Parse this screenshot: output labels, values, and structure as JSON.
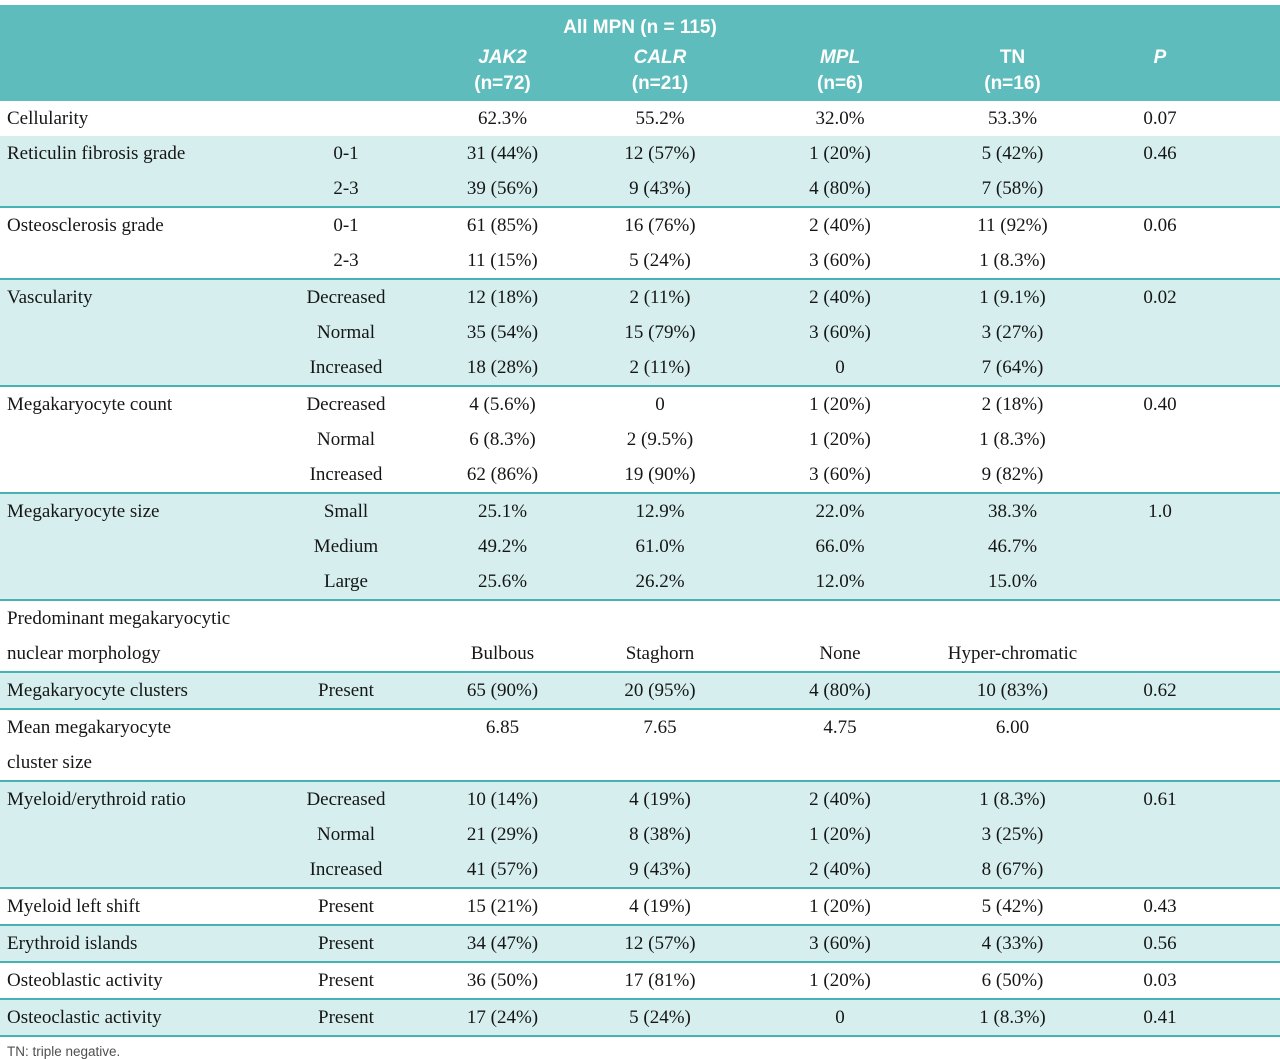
{
  "header": {
    "group_title": "All MPN (n = 115)",
    "columns": [
      {
        "name": "JAK2",
        "n": "(n=72)",
        "italic": true
      },
      {
        "name": "CALR",
        "n": "(n=21)",
        "italic": true
      },
      {
        "name": "MPL",
        "n": "(n=6)",
        "italic": true
      },
      {
        "name": "TN",
        "n": "(n=16)",
        "italic": false
      },
      {
        "name": "P",
        "n": "",
        "italic": true
      }
    ]
  },
  "table": {
    "rows": [
      {
        "label": "Cellularity",
        "sub": "",
        "jak2": "62.3%",
        "calr": "55.2%",
        "mpl": "32.0%",
        "tn": "53.3%",
        "p": "0.07",
        "shaded": false,
        "line": false
      },
      {
        "label": "Reticulin fibrosis grade",
        "sub": "0-1",
        "jak2": "31 (44%)",
        "calr": "12 (57%)",
        "mpl": "1 (20%)",
        "tn": "5 (42%)",
        "p": "0.46",
        "shaded": true,
        "line": false
      },
      {
        "label": "",
        "sub": "2-3",
        "jak2": "39 (56%)",
        "calr": "9 (43%)",
        "mpl": "4 (80%)",
        "tn": "7 (58%)",
        "p": "",
        "shaded": true,
        "line": false
      },
      {
        "label": "Osteosclerosis grade",
        "sub": "0-1",
        "jak2": "61 (85%)",
        "calr": "16 (76%)",
        "mpl": "2 (40%)",
        "tn": "11 (92%)",
        "p": "0.06",
        "shaded": false,
        "line": true
      },
      {
        "label": "",
        "sub": "2-3",
        "jak2": "11 (15%)",
        "calr": "5 (24%)",
        "mpl": "3 (60%)",
        "tn": "1 (8.3%)",
        "p": "",
        "shaded": false,
        "line": false
      },
      {
        "label": "Vascularity",
        "sub": "Decreased",
        "jak2": "12 (18%)",
        "calr": "2 (11%)",
        "mpl": "2 (40%)",
        "tn": "1 (9.1%)",
        "p": "0.02",
        "shaded": true,
        "line": true
      },
      {
        "label": "",
        "sub": "Normal",
        "jak2": "35 (54%)",
        "calr": "15 (79%)",
        "mpl": "3 (60%)",
        "tn": "3 (27%)",
        "p": "",
        "shaded": true,
        "line": false
      },
      {
        "label": "",
        "sub": "Increased",
        "jak2": "18 (28%)",
        "calr": "2 (11%)",
        "mpl": "0",
        "tn": "7 (64%)",
        "p": "",
        "shaded": true,
        "line": false
      },
      {
        "label": "Megakaryocyte count",
        "sub": "Decreased",
        "jak2": "4 (5.6%)",
        "calr": "0",
        "mpl": "1 (20%)",
        "tn": "2 (18%)",
        "p": "0.40",
        "shaded": false,
        "line": true
      },
      {
        "label": "",
        "sub": "Normal",
        "jak2": "6 (8.3%)",
        "calr": "2 (9.5%)",
        "mpl": "1 (20%)",
        "tn": "1 (8.3%)",
        "p": "",
        "shaded": false,
        "line": false
      },
      {
        "label": "",
        "sub": "Increased",
        "jak2": "62 (86%)",
        "calr": "19 (90%)",
        "mpl": "3 (60%)",
        "tn": "9 (82%)",
        "p": "",
        "shaded": false,
        "line": false
      },
      {
        "label": "Megakaryocyte size",
        "sub": "Small",
        "jak2": "25.1%",
        "calr": "12.9%",
        "mpl": "22.0%",
        "tn": "38.3%",
        "p": "1.0",
        "shaded": true,
        "line": true
      },
      {
        "label": "",
        "sub": "Medium",
        "jak2": "49.2%",
        "calr": "61.0%",
        "mpl": "66.0%",
        "tn": "46.7%",
        "p": "",
        "shaded": true,
        "line": false
      },
      {
        "label": "",
        "sub": "Large",
        "jak2": "25.6%",
        "calr": "26.2%",
        "mpl": "12.0%",
        "tn": "15.0%",
        "p": "",
        "shaded": true,
        "line": false
      },
      {
        "label": "Predominant megakaryocytic",
        "sub": "",
        "jak2": "",
        "calr": "",
        "mpl": "",
        "tn": "",
        "p": "",
        "shaded": false,
        "line": true
      },
      {
        "label": "nuclear morphology",
        "sub": "",
        "jak2": "Bulbous",
        "calr": "Staghorn",
        "mpl": "None",
        "tn": "Hyper-chromatic",
        "p": "",
        "shaded": false,
        "line": false
      },
      {
        "label": "Megakaryocyte clusters",
        "sub": "Present",
        "jak2": "65 (90%)",
        "calr": "20 (95%)",
        "mpl": "4 (80%)",
        "tn": "10 (83%)",
        "p": "0.62",
        "shaded": true,
        "line": true
      },
      {
        "label": "Mean megakaryocyte",
        "sub": "",
        "jak2": "6.85",
        "calr": "7.65",
        "mpl": "4.75",
        "tn": "6.00",
        "p": "",
        "shaded": false,
        "line": true
      },
      {
        "label": "cluster size",
        "sub": "",
        "jak2": "",
        "calr": "",
        "mpl": "",
        "tn": "",
        "p": "",
        "shaded": false,
        "line": false
      },
      {
        "label": "Myeloid/erythroid ratio",
        "sub": "Decreased",
        "jak2": "10 (14%)",
        "calr": "4 (19%)",
        "mpl": "2 (40%)",
        "tn": "1 (8.3%)",
        "p": "0.61",
        "shaded": true,
        "line": true
      },
      {
        "label": "",
        "sub": "Normal",
        "jak2": "21 (29%)",
        "calr": "8 (38%)",
        "mpl": "1 (20%)",
        "tn": "3 (25%)",
        "p": "",
        "shaded": true,
        "line": false
      },
      {
        "label": "",
        "sub": "Increased",
        "jak2": "41 (57%)",
        "calr": "9 (43%)",
        "mpl": "2 (40%)",
        "tn": "8 (67%)",
        "p": "",
        "shaded": true,
        "line": false
      },
      {
        "label": "Myeloid left shift",
        "sub": "Present",
        "jak2": "15 (21%)",
        "calr": "4 (19%)",
        "mpl": "1 (20%)",
        "tn": "5 (42%)",
        "p": "0.43",
        "shaded": false,
        "line": true
      },
      {
        "label": "Erythroid islands",
        "sub": "Present",
        "jak2": "34 (47%)",
        "calr": "12 (57%)",
        "mpl": "3 (60%)",
        "tn": "4 (33%)",
        "p": "0.56",
        "shaded": true,
        "line": true
      },
      {
        "label": "Osteoblastic activity",
        "sub": "Present",
        "jak2": "36 (50%)",
        "calr": "17 (81%)",
        "mpl": "1 (20%)",
        "tn": "6 (50%)",
        "p": "0.03",
        "shaded": false,
        "line": true
      },
      {
        "label": "Osteoclastic activity",
        "sub": "Present",
        "jak2": "17 (24%)",
        "calr": "5 (24%)",
        "mpl": "0",
        "tn": "1 (8.3%)",
        "p": "0.41",
        "shaded": true,
        "line": true
      }
    ]
  },
  "footer": {
    "note": "TN: triple negative."
  },
  "colors": {
    "header_teal": "#5fbcbc",
    "band_teal": "#d6eeee",
    "line_teal": "#45b3b3",
    "header_text": "#ffffff",
    "body_text": "#161616",
    "footnote_text": "#4f4f4f"
  }
}
